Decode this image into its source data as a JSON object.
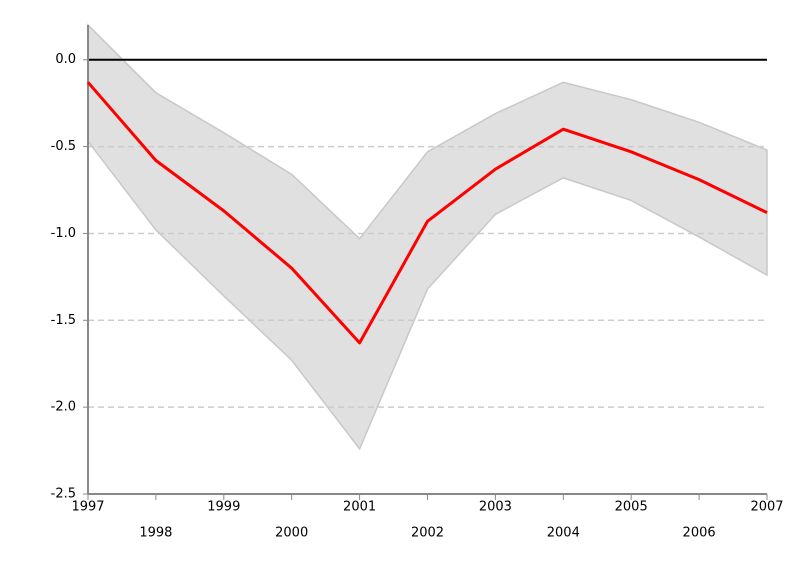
{
  "chart_data": {
    "type": "line",
    "x": [
      1997,
      1998,
      1999,
      2000,
      2001,
      2002,
      2003,
      2004,
      2005,
      2006,
      2007
    ],
    "values": [
      -0.13,
      -0.58,
      -0.87,
      -1.2,
      -1.63,
      -0.93,
      -0.63,
      -0.4,
      -0.53,
      -0.69,
      -0.88
    ],
    "upper": [
      0.2,
      -0.19,
      -0.42,
      -0.66,
      -1.03,
      -0.53,
      -0.31,
      -0.13,
      -0.23,
      -0.36,
      -0.52
    ],
    "lower": [
      -0.47,
      -0.98,
      -1.36,
      -1.73,
      -2.24,
      -1.32,
      -0.89,
      -0.68,
      -0.81,
      -1.02,
      -1.24
    ],
    "color": "#ff0000",
    "band_color": "#e0e0e0",
    "xlim": [
      1997,
      2007
    ],
    "xticks": [
      1997,
      1998,
      1999,
      2000,
      2001,
      2002,
      2003,
      2004,
      2005,
      2006,
      2007
    ],
    "ylim": [
      -2.5,
      0.2
    ],
    "yticks": [
      {
        "value": -2.5,
        "label": "-2.5"
      },
      {
        "value": -2,
        "label": "-2.0"
      },
      {
        "value": -1.5,
        "label": "-1.5"
      },
      {
        "value": -1,
        "label": "-1.0"
      },
      {
        "value": -0.5,
        "label": "-0.5"
      },
      {
        "value": 0,
        "label": "0.0"
      }
    ],
    "grid": true
  }
}
